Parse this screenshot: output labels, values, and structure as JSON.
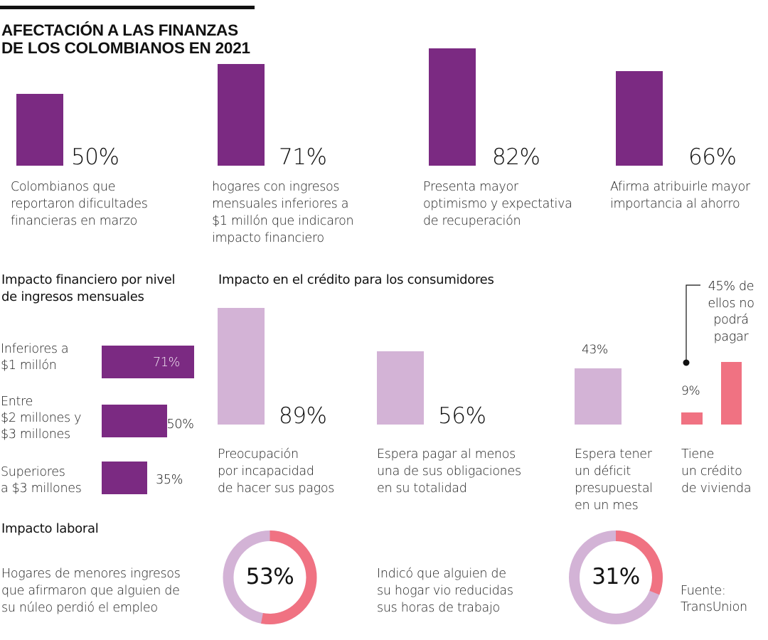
{
  "title": [
    "AFECTACIÓN A LAS FINANZAS",
    "DE LOS COLOMBIANOS EN 2021"
  ],
  "colors": {
    "dark_purple": "#7b2a82",
    "light_purple": "#d3b3d6",
    "pink": "#f07282",
    "text": "#1a1a1a"
  },
  "chart_data": [
    {
      "type": "bar",
      "id": "highlights",
      "title": "",
      "categories": [
        "Colombianos que reportaron dificultades financieras en marzo",
        "hogares con ingresos mensuales inferiores a $1 millón que indicaron impacto financiero",
        "Presenta mayor optimismo y expectativa de recuperación",
        "Afirma atribuirle mayor importancia al ahorro"
      ],
      "values": [
        50,
        71,
        82,
        66
      ],
      "labels": [
        "50%",
        "71%",
        "82%",
        "66%"
      ],
      "descriptions": [
        [
          "Colombianos que",
          "reportaron dificultades",
          "financieras en marzo"
        ],
        [
          "hogares con ingresos",
          "mensuales inferiores a",
          "$1 millón que indicaron",
          "impacto financiero"
        ],
        [
          "Presenta mayor",
          "optimismo y expectativa",
          "de recuperación"
        ],
        [
          "Afirma atribuirle mayor",
          "importancia al ahorro"
        ]
      ],
      "ylim": [
        0,
        100
      ],
      "color": "#7b2a82"
    },
    {
      "type": "bar",
      "id": "income-impact",
      "orientation": "horizontal",
      "title": [
        "Impacto financiero por nivel",
        "de ingresos mensuales"
      ],
      "categories": [
        [
          "Inferiores a",
          "$1 millón"
        ],
        [
          "Entre",
          "$2 millones y",
          "$3 millones"
        ],
        [
          "Superiores",
          "a $3 millones"
        ]
      ],
      "values": [
        71,
        50,
        35
      ],
      "labels": [
        "71%",
        "50%",
        "35%"
      ],
      "xlim": [
        0,
        71
      ],
      "color": "#7b2a82"
    },
    {
      "type": "bar",
      "id": "credit-impact",
      "title": "Impacto en el crédito para los consumidores",
      "categories": [
        "Preocupación por incapacidad de hacer sus pagos",
        "Espera pagar al menos una de sus obligaciones en su totalidad",
        "Espera tener un déficit presupuestal en un mes",
        "Tiene un crédito de vivienda"
      ],
      "values": [
        89,
        56,
        43,
        9
      ],
      "labels": [
        "89%",
        "56%",
        "43%",
        "9%"
      ],
      "descriptions": [
        [
          "Preocupación",
          "por incapacidad",
          "de hacer sus pagos"
        ],
        [
          "Espera pagar al menos",
          "una de sus obligaciones",
          "en su totalidad"
        ],
        [
          "Espera tener",
          "un déficit",
          "presupuestal",
          "en un mes"
        ],
        [
          "Tiene",
          "un crédito",
          "de vivienda"
        ]
      ],
      "sub_bar": {
        "of": "Tiene un crédito de vivienda",
        "value": 45,
        "annotation": [
          "45% de",
          "ellos no",
          "podrá",
          "pagar"
        ]
      },
      "ylim": [
        0,
        100
      ]
    },
    {
      "type": "pie",
      "id": "labor-impact",
      "title": "Impacto laboral",
      "donuts": [
        {
          "value": 53,
          "label": "53%",
          "description": [
            "Hogares de menores ingresos",
            "que afirmaron que alguien de",
            "su núleo perdió el empleo"
          ]
        },
        {
          "value": 31,
          "label": "31%",
          "description": [
            "Indicó que alguien de",
            "su hogar vio reducidas",
            "sus horas de trabajo"
          ]
        }
      ]
    }
  ],
  "source": [
    "Fuente:",
    "TransUnion"
  ]
}
